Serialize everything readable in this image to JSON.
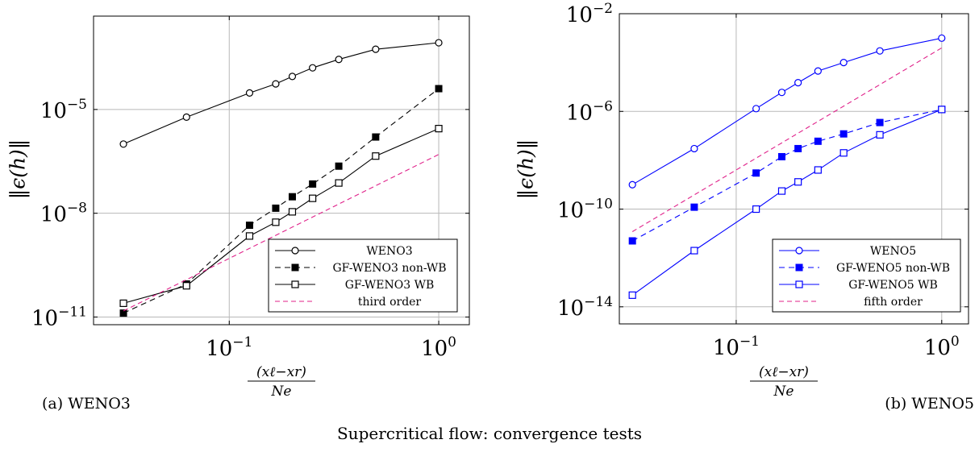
{
  "figure": {
    "caption": "Supercritical flow: convergence tests",
    "subcaptions": [
      "(a) WENO3",
      "(b) WENO5"
    ]
  },
  "chart_data": [
    {
      "type": "line",
      "x_scale": "log",
      "y_scale": "log",
      "xlim": [
        0.0225,
        1.4
      ],
      "ylim": [
        6e-12,
        0.005
      ],
      "x_ticks": [
        {
          "value": 0.1,
          "base": "10",
          "exp": "−1"
        },
        {
          "value": 1,
          "base": "10",
          "exp": "0"
        }
      ],
      "y_ticks": [
        {
          "value": 1e-05,
          "base": "10",
          "exp": "−5"
        },
        {
          "value": 1e-08,
          "base": "10",
          "exp": "−8"
        },
        {
          "value": 1e-11,
          "base": "10",
          "exp": "−11"
        }
      ],
      "grid": true,
      "legend_position": "bottom-right",
      "ylabel": "‖ϵ(h)‖",
      "xlabel": {
        "numerator": "(xℓ−xr)",
        "denominator": "Ne"
      },
      "series": [
        {
          "name": "WENO3",
          "color": "#000000",
          "dash": "solid",
          "marker": "open-circle",
          "x": [
            0.03125,
            0.0625,
            0.125,
            0.1667,
            0.2,
            0.25,
            0.3333,
            0.5,
            1.0
          ],
          "y": [
            1e-06,
            6e-06,
            3e-05,
            5.5e-05,
            9e-05,
            0.00016,
            0.00028,
            0.00055,
            0.00085
          ]
        },
        {
          "name": "GF-WENO3 non-WB",
          "color": "#000000",
          "dash": "dashed",
          "marker": "filled-square",
          "x": [
            0.03125,
            0.0625,
            0.125,
            0.1667,
            0.2,
            0.25,
            0.3333,
            0.5,
            1.0
          ],
          "y": [
            1.3e-11,
            9e-11,
            4.5e-09,
            1.4e-08,
            3e-08,
            7e-08,
            2.3e-07,
            1.6e-06,
            4e-05
          ]
        },
        {
          "name": "GF-WENO3 WB",
          "color": "#000000",
          "dash": "solid",
          "marker": "open-square",
          "x": [
            0.03125,
            0.0625,
            0.125,
            0.1667,
            0.2,
            0.25,
            0.3333,
            0.5,
            1.0
          ],
          "y": [
            2.5e-11,
            8e-11,
            2.2e-09,
            5.5e-09,
            1.1e-08,
            2.7e-08,
            7.5e-08,
            4.5e-07,
            2.8e-06
          ]
        },
        {
          "name": "third order",
          "color": "#e0218a",
          "dash": "dashed",
          "marker": "none",
          "x": [
            0.03125,
            1.0
          ],
          "y": [
            1.5e-11,
            5e-07
          ]
        }
      ]
    },
    {
      "type": "line",
      "x_scale": "log",
      "y_scale": "log",
      "xlim": [
        0.027,
        1.35
      ],
      "ylim": [
        2e-15,
        0.01
      ],
      "x_ticks": [
        {
          "value": 0.1,
          "base": "10",
          "exp": "−1"
        },
        {
          "value": 1,
          "base": "10",
          "exp": "0"
        }
      ],
      "y_ticks": [
        {
          "value": 0.01,
          "base": "10",
          "exp": "−2"
        },
        {
          "value": 1e-06,
          "base": "10",
          "exp": "−6"
        },
        {
          "value": 1e-10,
          "base": "10",
          "exp": "−10"
        },
        {
          "value": 1e-14,
          "base": "10",
          "exp": "−14"
        }
      ],
      "grid": true,
      "legend_position": "bottom-right",
      "ylabel": "‖ϵ(h)‖",
      "xlabel": {
        "numerator": "(xℓ−xr)",
        "denominator": "Ne"
      },
      "series": [
        {
          "name": "WENO5",
          "color": "#0000ff",
          "dash": "solid",
          "marker": "open-circle",
          "x": [
            0.03125,
            0.0625,
            0.125,
            0.1667,
            0.2,
            0.25,
            0.3333,
            0.5,
            1.0
          ],
          "y": [
            1e-09,
            3e-08,
            1.3e-06,
            6e-06,
            1.5e-05,
            4.5e-05,
            0.0001,
            0.0003,
            0.001
          ]
        },
        {
          "name": "GF-WENO5 non-WB",
          "color": "#0000ff",
          "dash": "dashed",
          "marker": "filled-square",
          "x": [
            0.03125,
            0.0625,
            0.125,
            0.1667,
            0.2,
            0.25,
            0.3333,
            0.5,
            1.0
          ],
          "y": [
            5e-12,
            1.2e-10,
            3e-09,
            1.4e-08,
            3e-08,
            6e-08,
            1.2e-07,
            3.5e-07,
            1.2e-06
          ]
        },
        {
          "name": "GF-WENO5 WB",
          "color": "#0000ff",
          "dash": "solid",
          "marker": "open-square",
          "x": [
            0.03125,
            0.0625,
            0.125,
            0.1667,
            0.2,
            0.25,
            0.3333,
            0.5,
            1.0
          ],
          "y": [
            3e-14,
            2e-12,
            1e-10,
            5.5e-10,
            1.3e-09,
            4e-09,
            2e-08,
            1.1e-07,
            1.2e-06
          ]
        },
        {
          "name": "fifth order",
          "color": "#e0218a",
          "dash": "dashed",
          "marker": "none",
          "x": [
            0.03125,
            1.0
          ],
          "y": [
            1.2e-11,
            0.0004
          ]
        }
      ]
    }
  ]
}
